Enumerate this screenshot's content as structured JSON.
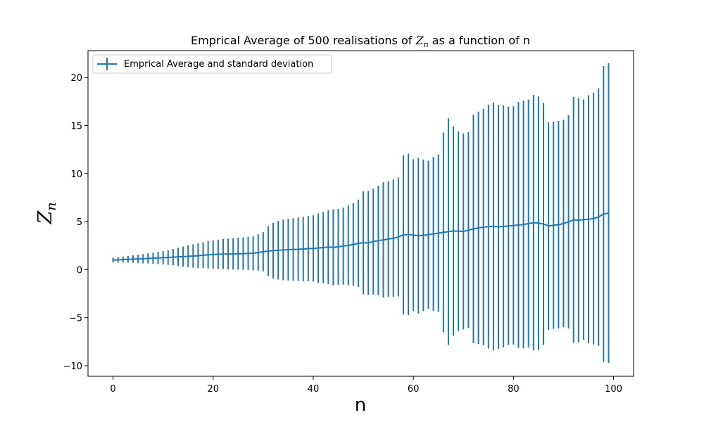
{
  "chart_data": {
    "type": "line",
    "title": "Emprical Average of 500 realisations of Z_n as a function of n",
    "xlabel": "n",
    "ylabel": "Z_n",
    "xlim": [
      -5,
      104
    ],
    "ylim": [
      -11.1,
      22.8
    ],
    "xticks": [
      0,
      20,
      40,
      60,
      80,
      100
    ],
    "yticks": [
      -10,
      -5,
      0,
      5,
      10,
      15,
      20
    ],
    "xtick_labels": [
      "0",
      "20",
      "40",
      "60",
      "80",
      "100"
    ],
    "ytick_labels": [
      "−10",
      "−5",
      "0",
      "5",
      "10",
      "15",
      "20"
    ],
    "legend": {
      "location": "upper-left",
      "label": "Emprical Average and standard deviation"
    },
    "grid": false,
    "color": "#1f77b4",
    "series": [
      {
        "name": "Emprical Average and standard deviation",
        "x": [
          0,
          1,
          2,
          3,
          4,
          5,
          6,
          7,
          8,
          9,
          10,
          11,
          12,
          13,
          14,
          15,
          16,
          17,
          18,
          19,
          20,
          21,
          22,
          23,
          24,
          25,
          26,
          27,
          28,
          29,
          30,
          31,
          32,
          33,
          34,
          35,
          36,
          37,
          38,
          39,
          40,
          41,
          42,
          43,
          44,
          45,
          46,
          47,
          48,
          49,
          50,
          51,
          52,
          53,
          54,
          55,
          56,
          57,
          58,
          59,
          60,
          61,
          62,
          63,
          64,
          65,
          66,
          67,
          68,
          69,
          70,
          71,
          72,
          73,
          74,
          75,
          76,
          77,
          78,
          79,
          80,
          81,
          82,
          83,
          84,
          85,
          86,
          87,
          88,
          89,
          90,
          91,
          92,
          93,
          94,
          95,
          96,
          97,
          98,
          99
        ],
        "y": [
          1.0,
          1.02,
          1.05,
          1.07,
          1.1,
          1.12,
          1.14,
          1.17,
          1.19,
          1.22,
          1.24,
          1.27,
          1.3,
          1.33,
          1.36,
          1.39,
          1.42,
          1.45,
          1.5,
          1.55,
          1.58,
          1.6,
          1.62,
          1.63,
          1.64,
          1.66,
          1.67,
          1.69,
          1.71,
          1.79,
          1.87,
          1.93,
          1.98,
          2.02,
          2.05,
          2.08,
          2.1,
          2.12,
          2.15,
          2.18,
          2.21,
          2.25,
          2.3,
          2.35,
          2.32,
          2.38,
          2.45,
          2.53,
          2.62,
          2.74,
          2.8,
          2.78,
          2.92,
          3.02,
          3.1,
          3.18,
          3.28,
          3.4,
          3.62,
          3.66,
          3.6,
          3.53,
          3.57,
          3.64,
          3.72,
          3.8,
          3.88,
          3.96,
          4.02,
          4.0,
          3.98,
          4.12,
          4.25,
          4.35,
          4.42,
          4.48,
          4.5,
          4.45,
          4.5,
          4.55,
          4.6,
          4.65,
          4.7,
          4.8,
          4.88,
          4.85,
          4.75,
          4.55,
          4.62,
          4.68,
          4.8,
          4.98,
          5.18,
          5.15,
          5.2,
          5.25,
          5.32,
          5.48,
          5.8,
          5.88
        ],
        "err": [
          0.25,
          0.28,
          0.31,
          0.35,
          0.39,
          0.43,
          0.48,
          0.53,
          0.58,
          0.64,
          0.7,
          0.76,
          0.85,
          0.95,
          1.05,
          1.15,
          1.22,
          1.28,
          1.35,
          1.42,
          1.48,
          1.52,
          1.56,
          1.6,
          1.63,
          1.66,
          1.69,
          1.72,
          1.78,
          1.88,
          2.05,
          2.6,
          2.9,
          3.05,
          3.15,
          3.2,
          3.25,
          3.3,
          3.35,
          3.4,
          3.45,
          3.6,
          3.7,
          3.85,
          3.95,
          3.95,
          4.0,
          4.15,
          4.3,
          4.55,
          5.35,
          5.4,
          5.5,
          5.7,
          6.0,
          6.0,
          6.1,
          6.2,
          8.3,
          8.4,
          7.9,
          8.1,
          7.9,
          7.7,
          8.0,
          8.2,
          10.4,
          11.8,
          10.9,
          10.4,
          10.2,
          10.2,
          11.9,
          12.1,
          12.3,
          12.7,
          12.9,
          12.7,
          12.6,
          12.4,
          12.4,
          12.8,
          12.9,
          12.9,
          13.3,
          13.2,
          12.6,
          10.8,
          10.8,
          10.8,
          10.8,
          11.1,
          12.8,
          12.7,
          12.5,
          12.9,
          13.1,
          13.4,
          15.4,
          15.6
        ]
      }
    ]
  }
}
